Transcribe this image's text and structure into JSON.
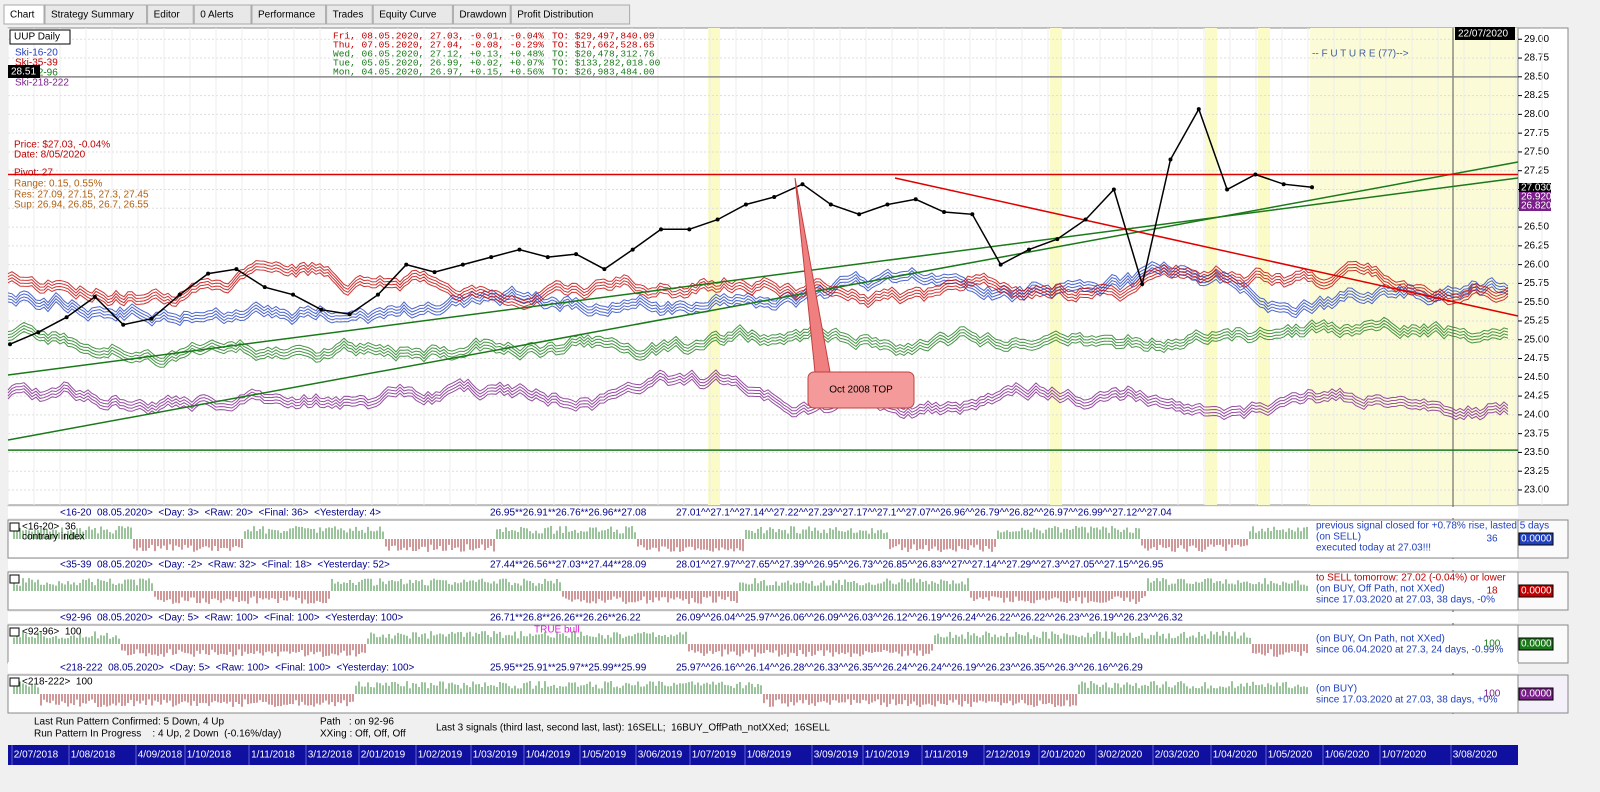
{
  "tabs": [
    "Chart",
    "Strategy Summary",
    "Editor",
    "0 Alerts",
    "Performance",
    "Trades",
    "Equity Curve",
    "Drawdown",
    "Profit Distribution"
  ],
  "main_chart": {
    "symbol": "UUP Daily",
    "legend": [
      {
        "name": "Ski-16-20",
        "color": "#1f3fbf"
      },
      {
        "name": "Ski-35-39",
        "color": "#c00000"
      },
      {
        "name": "Ski-92-96",
        "color": "#1a7a1a"
      },
      {
        "name": "Ski-218-222",
        "color": "#7a1f8a"
      }
    ],
    "last_price_box": "28.51",
    "quotes": [
      {
        "text": "Fri, 08.05.2020, 27.03, -0.01, -0.04%",
        "turnover": "TO: $29,497,840.09",
        "color": "#c00000"
      },
      {
        "text": "Thu, 07.05.2020, 27.04, -0.08, -0.29%",
        "turnover": "TO: $17,662,528.65",
        "color": "#c00000"
      },
      {
        "text": "Wed, 06.05.2020, 27.12, +0.13, +0.48%",
        "turnover": "TO: $20,478,312.76",
        "color": "#1a7a1a"
      },
      {
        "text": "Tue, 05.05.2020, 26.99, +0.02, +0.07%",
        "turnover": "TO: $133,282,018.00",
        "color": "#1a7a1a"
      },
      {
        "text": "Mon, 04.05.2020, 26.97, +0.15, +0.56%",
        "turnover": "TO: $26,983,484.00",
        "color": "#1a7a1a"
      }
    ],
    "info": {
      "price": "Price: $27.03, -0.04%",
      "date": "Date: 8/05/2020",
      "pivot": "Pivot: 27",
      "range": "Range: 0.15, 0.55%",
      "res": "Res: 27.09, 27.15, 27.3, 27.45",
      "sup": "Sup: 26.94, 26.85, 26.7, 26.55"
    },
    "date_box": "22/07/2020",
    "future_label": "-- F U T U R E (77)-->",
    "annotation": "Oct 2008 TOP",
    "ylim": [
      22.8,
      29.15
    ],
    "yticks": [
      {
        "value": 23,
        "label": "23.00"
      },
      {
        "value": 23.25,
        "label": "23.25"
      },
      {
        "value": 23.5,
        "label": "23.50"
      },
      {
        "value": 23.75,
        "label": "23.75"
      },
      {
        "value": 24,
        "label": "24.00"
      },
      {
        "value": 24.25,
        "label": "24.25"
      },
      {
        "value": 24.5,
        "label": "24.50"
      },
      {
        "value": 24.75,
        "label": "24.75"
      },
      {
        "value": 25,
        "label": "25.00"
      },
      {
        "value": 25.25,
        "label": "25.25"
      },
      {
        "value": 25.5,
        "label": "25.50"
      },
      {
        "value": 25.75,
        "label": "25.75"
      },
      {
        "value": 26,
        "label": "26.00"
      },
      {
        "value": 26.25,
        "label": "26.25"
      },
      {
        "value": 26.5,
        "label": "26.50"
      },
      {
        "value": 26.75,
        "label": "26.75"
      },
      {
        "value": 27,
        "label": "27.00"
      },
      {
        "value": 27.25,
        "label": "27.25"
      },
      {
        "value": 27.5,
        "label": "27.50"
      },
      {
        "value": 27.75,
        "label": "27.75"
      },
      {
        "value": 28,
        "label": "28.00"
      },
      {
        "value": 28.25,
        "label": "28.25"
      },
      {
        "value": 28.5,
        "label": "28.50"
      },
      {
        "value": 28.75,
        "label": "28.75"
      },
      {
        "value": 29,
        "label": "29.00"
      }
    ],
    "price_tags": [
      {
        "label": "27.030",
        "color": "#000000"
      },
      {
        "label": "26.920",
        "color": "#7a1f8a"
      },
      {
        "label": "26.820",
        "color": "#7a1f8a"
      }
    ],
    "levels": [
      {
        "value": 28.5,
        "color": "#888888"
      },
      {
        "value": 27.2,
        "color": "#e00000"
      },
      {
        "value": 23.53,
        "color": "#1a7a1a"
      }
    ],
    "price_series": {
      "color": "#000000",
      "values": [
        24.94,
        25.1,
        25.3,
        25.57,
        25.2,
        25.28,
        25.6,
        25.88,
        25.94,
        25.7,
        25.6,
        25.4,
        25.34,
        25.6,
        26.0,
        25.9,
        26.0,
        26.1,
        26.2,
        26.1,
        26.14,
        25.94,
        26.2,
        26.47,
        26.47,
        26.6,
        26.8,
        26.9,
        27.07,
        26.8,
        26.67,
        26.8,
        26.87,
        26.7,
        26.67,
        26.0,
        26.2,
        26.34,
        26.6,
        27.0,
        25.74,
        27.4,
        28.07,
        27.0,
        27.2,
        27.07,
        27.03
      ]
    }
  },
  "date_axis": [
    "2/07/2018",
    "1/08/2018",
    "4/09/2018",
    "1/10/2018",
    "1/11/2018",
    "3/12/2018",
    "2/01/2019",
    "1/02/2019",
    "1/03/2019",
    "1/04/2019",
    "1/05/2019",
    "3/06/2019",
    "1/07/2019",
    "1/08/2019",
    "3/09/2019",
    "1/10/2019",
    "1/11/2019",
    "2/12/2019",
    "2/01/2020",
    "3/02/2020",
    "2/03/2020",
    "1/04/2020",
    "1/05/2020",
    "1/06/2020",
    "1/07/2020",
    "3/08/2020"
  ],
  "panels": [
    {
      "header": "<16-20  08.05.2020>  <Day: 3>  <Raw: 20>  <Final: 36>  <Yesterday: 4>",
      "seq1": "26.95**26.91**26.76**26.96**27.08",
      "seq2": "27.01^^27.1^^27.14^^27.22^^27.23^^27.17^^27.1^^27.07^^26.96^^26.79^^26.82^^26.97^^26.99^^27.12^^27.04",
      "label": "<16-20>  36",
      "sub": "contrary index",
      "notes": [
        "previous signal closed for +0.78% rise, lasted 5 days",
        "(on SELL)",
        "executed today at 27.03!!!"
      ],
      "score": "36",
      "box": "0.0000",
      "color": "#1f3fbf"
    },
    {
      "header": "<35-39  08.05.2020>  <Day: -2>  <Raw: 32>  <Final: 18>  <Yesterday: 52>",
      "seq1": "27.44**26.56**27.03**27.44**28.09",
      "seq2": "28.01^^27.97^^27.65^^27.39^^26.95^^26.73^^26.85^^26.83^^27^^27.14^^27.29^^27.3^^27.05^^27.15^^26.95",
      "notes": [
        "to SELL tomorrow: 27.02 (-0.04%) or lower",
        "(on BUY, Off Path, not XXed)",
        "since 17.03.2020 at 27.03, 38 days, -0%"
      ],
      "score": "18",
      "box": "0.0000",
      "color": "#c00000"
    },
    {
      "header": "<92-96  08.05.2020>  <Day: 5>  <Raw: 100>  <Final: 100>  <Yesterday: 100>",
      "seq1": "26.71**26.8**26.26**26.26**26.22",
      "seq2": "26.09^^26.04^^25.97^^26.06^^26.09^^26.03^^26.12^^26.19^^26.24^^26.22^^26.22^^26.23^^26.19^^26.23^^26.32",
      "label": "<92-96>  100",
      "tag": "TRUE bull",
      "notes": [
        "(on BUY, On Path, not XXed)",
        "since 06.04.2020 at 27.3, 24 days, -0.99%"
      ],
      "score": "100",
      "box": "0.0000",
      "color": "#1a7a1a"
    },
    {
      "header": "<218-222  08.05.2020>  <Day: 5>  <Raw: 100>  <Final: 100>  <Yesterday: 100>",
      "seq1": "25.95**25.91**25.97**25.99**25.99",
      "seq2": "25.97^^26.16^^26.14^^26.28^^26.33^^26.35^^26.24^^26.24^^26.19^^26.23^^26.35^^26.3^^26.16^^26.29",
      "label": "<218-222>  100",
      "notes": [
        "(on BUY)",
        "since 17.03.2020 at 27.03, 38 days, +0%"
      ],
      "score": "100",
      "box": "0.0000",
      "color": "#7a1f8a"
    }
  ],
  "status": {
    "confirmed": "Last Run Pattern Confirmed: 5 Down, 4 Up",
    "progress": "Run Pattern In Progress    : 4 Up, 2 Down  (-0.16%/day)",
    "path": "Path   : on 92-96",
    "xxing": "XXing : Off, Off, Off",
    "signals": "Last 3 signals (third last, second last, last): 16SELL;  16BUY_OffPath_notXXed;  16SELL"
  }
}
